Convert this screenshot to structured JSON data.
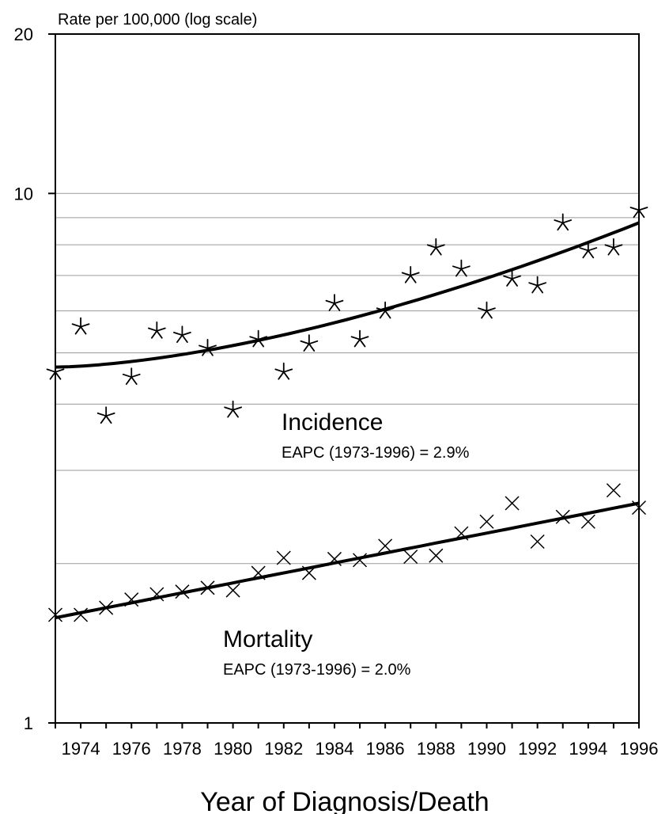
{
  "chart_data": {
    "type": "scatter",
    "title": "",
    "ylabel": "Rate per 100,000 (log scale)",
    "xlabel": "Year of Diagnosis/Death",
    "y_scale": "log",
    "ylim": [
      1,
      20
    ],
    "xlim": [
      1973,
      1996
    ],
    "y_ticks": [
      {
        "value": 1,
        "label": "1"
      },
      {
        "value": 10,
        "label": "10"
      },
      {
        "value": 20,
        "label": "20"
      }
    ],
    "y_gridlines": [
      2,
      3,
      4,
      5,
      6,
      7,
      8,
      9,
      10
    ],
    "x_ticks": [
      1974,
      1976,
      1978,
      1980,
      1982,
      1984,
      1986,
      1988,
      1990,
      1992,
      1994,
      1996
    ],
    "x_tick_labels": [
      "1974",
      "1976",
      "1978",
      "1980",
      "1982",
      "1984",
      "1986",
      "1988",
      "1990",
      "1992",
      "1994",
      "1996"
    ],
    "x": [
      1973,
      1974,
      1975,
      1976,
      1977,
      1978,
      1979,
      1980,
      1981,
      1982,
      1983,
      1984,
      1985,
      1986,
      1987,
      1988,
      1989,
      1990,
      1991,
      1992,
      1993,
      1994,
      1995,
      1996
    ],
    "series": [
      {
        "name": "Incidence",
        "annotation": "EAPC (1973-1996) = 2.9%",
        "marker": "asterisk",
        "values": [
          4.6,
          5.6,
          3.8,
          4.5,
          5.5,
          5.4,
          5.1,
          3.9,
          5.3,
          4.6,
          5.2,
          6.2,
          5.3,
          6.0,
          7.0,
          7.9,
          7.2,
          6.0,
          6.9,
          6.7,
          8.8,
          7.8,
          7.9,
          9.3
        ],
        "trend_start": 4.7,
        "trend_end": 8.8
      },
      {
        "name": "Mortality",
        "annotation": "EAPC (1973-1996) = 2.0%",
        "marker": "x",
        "values": [
          1.6,
          1.6,
          1.65,
          1.71,
          1.75,
          1.77,
          1.8,
          1.78,
          1.92,
          2.05,
          1.92,
          2.04,
          2.03,
          2.16,
          2.06,
          2.07,
          2.28,
          2.4,
          2.6,
          2.2,
          2.45,
          2.4,
          2.75,
          2.55
        ],
        "trend_start": 1.58,
        "trend_end": 2.6
      }
    ],
    "colors": {
      "axis": "#000000",
      "grid": "#9a9a9a",
      "marks": "#000000"
    }
  }
}
